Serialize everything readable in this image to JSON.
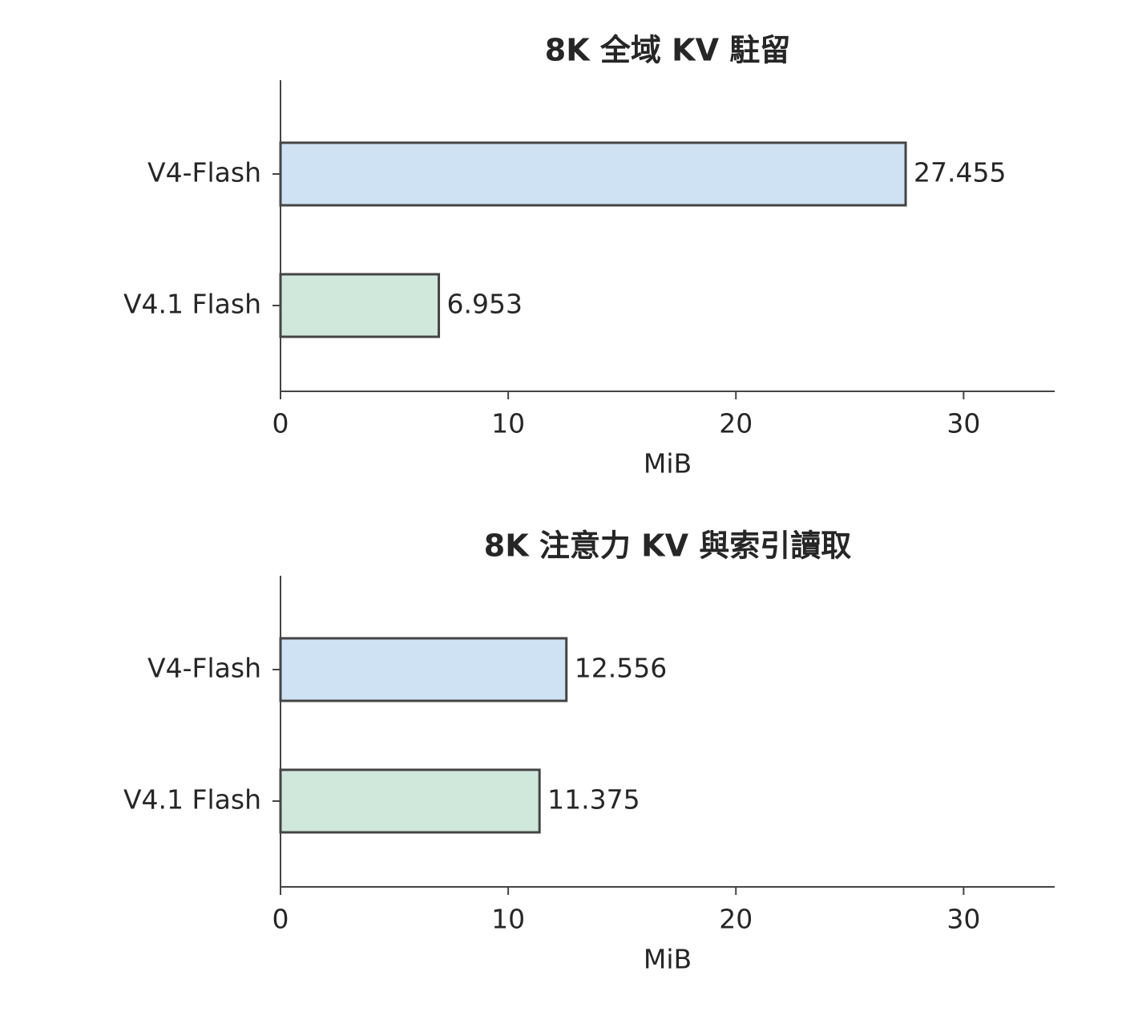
{
  "chart_data": [
    {
      "type": "barh",
      "title": "8K 全域 KV 駐留",
      "x_label": "MiB",
      "categories": [
        "V4-Flash",
        "V4.1 Flash"
      ],
      "values": [
        27.455,
        6.953
      ],
      "colors": [
        "#cfe2f3",
        "#d0e8dc"
      ],
      "xlim": [
        0,
        34
      ],
      "xticks": [
        0,
        10,
        20,
        30
      ]
    },
    {
      "type": "barh",
      "title": "8K 注意力 KV 與索引讀取",
      "x_label": "MiB",
      "categories": [
        "V4-Flash",
        "V4.1 Flash"
      ],
      "values": [
        12.556,
        11.375
      ],
      "colors": [
        "#cfe2f3",
        "#d0e8dc"
      ],
      "xlim": [
        0,
        34
      ],
      "xticks": [
        0,
        10,
        20,
        30
      ]
    }
  ]
}
